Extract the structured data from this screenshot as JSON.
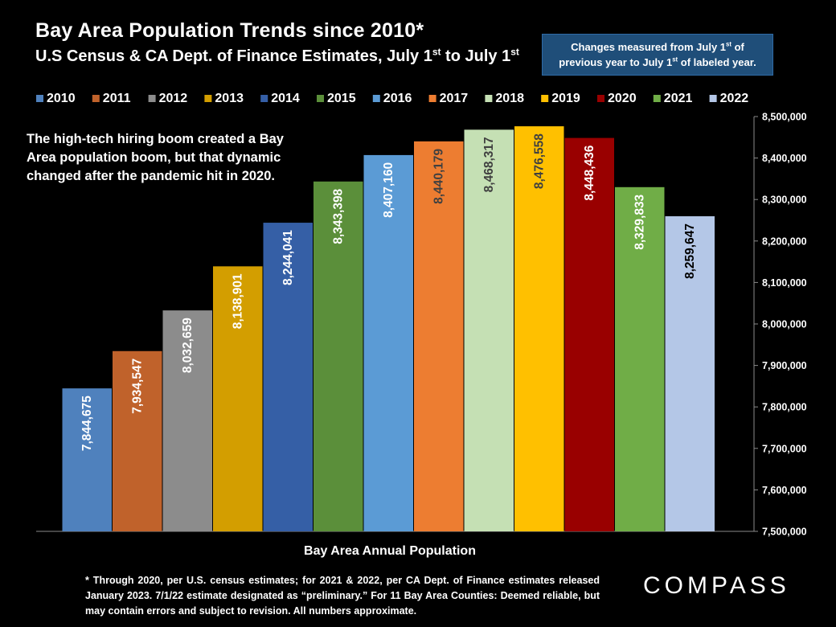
{
  "header": {
    "title": "Bay Area Population Trends since 2010*",
    "subtitle_main": "U.S Census & CA Dept. of Finance Estimates, July 1",
    "subtitle_sup1": "st",
    "subtitle_mid": " to July 1",
    "subtitle_sup2": "st"
  },
  "note": {
    "line1_a": "Changes measured from July 1",
    "line1_sup": "st",
    "line1_b": " of",
    "line2_a": "previous year to July 1",
    "line2_sup": "st",
    "line2_b": " of labeled year."
  },
  "callout": "The high-tech hiring boom created a Bay Area population boom, but that dynamic changed after the pandemic hit in 2020.",
  "footnote": "* Through 2020, per U.S. census estimates; for 2021 & 2022, per CA Dept. of Finance estimates released January 2023. 7/1/22 estimate designated as “preliminary.” For 11 Bay Area Counties: Deemed reliable, but may contain errors and subject to revision.  All numbers  approximate.",
  "logo": "COMPASS",
  "chart_data": {
    "type": "bar",
    "title": "Bay Area Population Trends since 2010*",
    "xlabel": "Bay Area Annual Population",
    "ylabel": "",
    "ylim": [
      7500000,
      8500000
    ],
    "ytick_step": 100000,
    "legend_position": "top",
    "grid": false,
    "categories": [
      "2010",
      "2011",
      "2012",
      "2013",
      "2014",
      "2015",
      "2016",
      "2017",
      "2018",
      "2019",
      "2020",
      "2021",
      "2022"
    ],
    "values": [
      7844675,
      7934547,
      8032659,
      8138901,
      8244041,
      8343398,
      8407160,
      8440179,
      8468317,
      8476558,
      8448436,
      8329833,
      8259647
    ],
    "labels": [
      "7,844,675",
      "7,934,547",
      "8,032,659",
      "8,138,901",
      "8,244,041",
      "8,343,398",
      "8,407,160",
      "8,440,179",
      "8,468,317",
      "8,476,558",
      "8,448,436",
      "8,329,833",
      "8,259,647"
    ],
    "colors": [
      "#4f81bd",
      "#c0622b",
      "#8c8c8c",
      "#d39e00",
      "#355fa6",
      "#5b8f3a",
      "#5b9bd5",
      "#ed7d31",
      "#c5e0b4",
      "#ffc000",
      "#990000",
      "#70ad47",
      "#b4c7e7"
    ],
    "label_colors": [
      "#ffffff",
      "#ffffff",
      "#ffffff",
      "#ffffff",
      "#ffffff",
      "#ffffff",
      "#ffffff",
      "#404040",
      "#404040",
      "#404040",
      "#ffffff",
      "#ffffff",
      "#000000"
    ],
    "ytick_labels": [
      "7,500,000",
      "7,600,000",
      "7,700,000",
      "7,800,000",
      "7,900,000",
      "8,000,000",
      "8,100,000",
      "8,200,000",
      "8,300,000",
      "8,400,000",
      "8,500,000"
    ]
  }
}
